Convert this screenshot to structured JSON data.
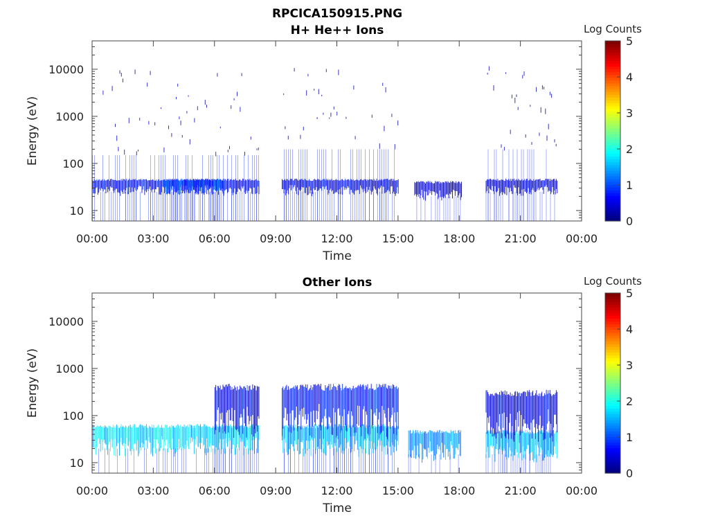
{
  "figure": {
    "title": "RPCICA150915.PNG"
  },
  "chart_data": [
    {
      "type": "heatmap",
      "title": "H+ He++ Ions",
      "xlabel": "Time",
      "ylabel": "Energy (eV)",
      "x_ticks": [
        "00:00",
        "03:00",
        "06:00",
        "09:00",
        "12:00",
        "15:00",
        "18:00",
        "21:00",
        "00:00"
      ],
      "x_range_hours": [
        0,
        24
      ],
      "y_ticks": [
        "10",
        "100",
        "1000",
        "10000"
      ],
      "y_scale": "log",
      "y_range": [
        6,
        40000
      ],
      "colorbar": {
        "label": "Log Counts",
        "ticks": [
          "0",
          "1",
          "2",
          "3",
          "4",
          "5"
        ],
        "range": [
          0,
          5
        ],
        "colormap": "jet"
      },
      "data_gaps_hours": [
        [
          8.2,
          9.3
        ],
        [
          15.1,
          15.8
        ],
        [
          18.2,
          19.3
        ],
        [
          22.9,
          24
        ]
      ],
      "bands": [
        {
          "t0": 0.0,
          "t1": 8.2,
          "emin": 25,
          "emax": 45,
          "log_counts": 0.6
        },
        {
          "t0": 3.5,
          "t1": 6.5,
          "emin": 25,
          "emax": 45,
          "log_counts": 1.0
        },
        {
          "t0": 0.0,
          "t1": 8.2,
          "emin": 150,
          "emax": 12000,
          "log_counts": 0.2
        },
        {
          "t0": 9.3,
          "t1": 15.0,
          "emin": 25,
          "emax": 45,
          "log_counts": 0.5
        },
        {
          "t0": 9.3,
          "t1": 15.0,
          "emin": 200,
          "emax": 12000,
          "log_counts": 0.1
        },
        {
          "t0": 15.8,
          "t1": 18.1,
          "emin": 20,
          "emax": 40,
          "log_counts": 0.3
        },
        {
          "t0": 19.3,
          "t1": 22.8,
          "emin": 25,
          "emax": 45,
          "log_counts": 0.4
        },
        {
          "t0": 19.3,
          "t1": 22.8,
          "emin": 200,
          "emax": 12000,
          "log_counts": 0.1
        }
      ]
    },
    {
      "type": "heatmap",
      "title": "Other Ions",
      "xlabel": "Time",
      "ylabel": "Energy (eV)",
      "x_ticks": [
        "00:00",
        "03:00",
        "06:00",
        "09:00",
        "12:00",
        "15:00",
        "18:00",
        "21:00",
        "00:00"
      ],
      "x_range_hours": [
        0,
        24
      ],
      "y_ticks": [
        "10",
        "100",
        "1000",
        "10000"
      ],
      "y_scale": "log",
      "y_range": [
        6,
        40000
      ],
      "colorbar": {
        "label": "Log Counts",
        "ticks": [
          "0",
          "1",
          "2",
          "3",
          "4",
          "5"
        ],
        "range": [
          0,
          5
        ],
        "colormap": "jet"
      },
      "data_gaps_hours": [
        [
          8.2,
          9.3
        ],
        [
          15.1,
          15.5
        ],
        [
          18.2,
          19.3
        ],
        [
          22.9,
          24
        ]
      ],
      "bands": [
        {
          "t0": 0.0,
          "t1": 8.2,
          "emin": 20,
          "emax": 60,
          "log_counts": 1.7
        },
        {
          "t0": 6.0,
          "t1": 8.2,
          "emin": 60,
          "emax": 400,
          "log_counts": 0.6
        },
        {
          "t0": 9.3,
          "t1": 15.0,
          "emin": 20,
          "emax": 60,
          "log_counts": 1.6
        },
        {
          "t0": 9.3,
          "t1": 15.0,
          "emin": 60,
          "emax": 400,
          "log_counts": 0.7
        },
        {
          "t0": 15.5,
          "t1": 18.1,
          "emin": 15,
          "emax": 45,
          "log_counts": 1.4
        },
        {
          "t0": 19.3,
          "t1": 22.8,
          "emin": 15,
          "emax": 45,
          "log_counts": 1.6
        },
        {
          "t0": 19.3,
          "t1": 22.8,
          "emin": 50,
          "emax": 300,
          "log_counts": 0.5
        }
      ]
    }
  ]
}
